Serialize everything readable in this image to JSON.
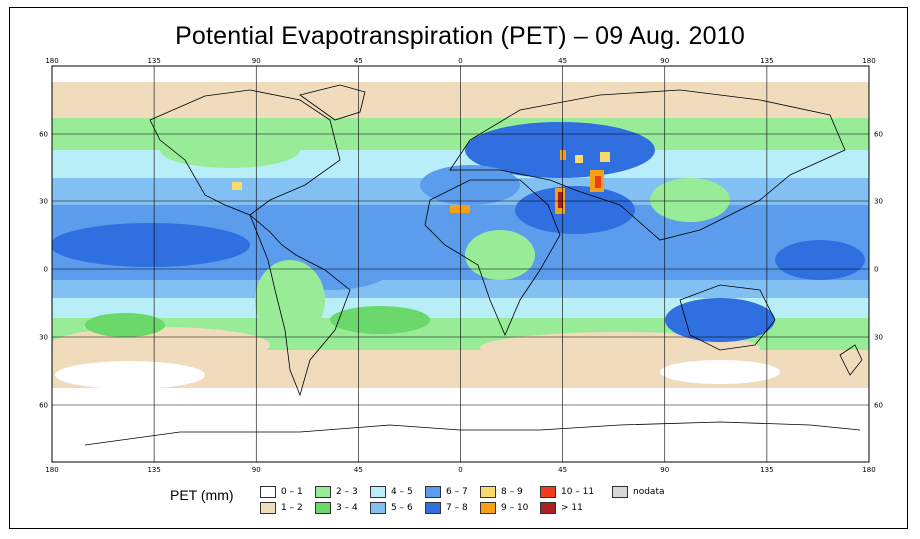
{
  "title": "Potential Evapotranspiration (PET) – 09 Aug. 2010",
  "map": {
    "lon_ticks": [
      "180",
      "135",
      "90",
      "45",
      "0",
      "45",
      "90",
      "135",
      "180"
    ],
    "lat_ticks": [
      "60",
      "30",
      "0",
      "30",
      "60"
    ],
    "colors": {
      "c0_1": "#ffffff",
      "c1_2": "#f0dcbc",
      "c2_3": "#98ec98",
      "c3_4": "#6ad86a",
      "c4_5": "#b8eef8",
      "c5_6": "#82c0f4",
      "c6_7": "#5c9cec",
      "c7_8": "#2f6fe0",
      "c8_9": "#fada6a",
      "c9_10": "#f6a018",
      "c10_11": "#ee3c1c",
      "cgt11": "#a82020",
      "nodata": "#d8d8d8"
    }
  },
  "legend": {
    "title": "PET (mm)",
    "items": [
      {
        "label": "0 – 1",
        "color": "#ffffff"
      },
      {
        "label": "1 – 2",
        "color": "#f0dcbc"
      },
      {
        "label": "2 – 3",
        "color": "#98ec98"
      },
      {
        "label": "3 – 4",
        "color": "#6ad86a"
      },
      {
        "label": "4 – 5",
        "color": "#b8eef8"
      },
      {
        "label": "5 – 6",
        "color": "#82c0f4"
      },
      {
        "label": "6 – 7",
        "color": "#5c9cec"
      },
      {
        "label": "7 – 8",
        "color": "#2f6fe0"
      },
      {
        "label": "8 – 9",
        "color": "#fada6a"
      },
      {
        "label": "9 – 10",
        "color": "#f6a018"
      },
      {
        "label": "10 – 11",
        "color": "#ee3c1c"
      },
      {
        "label": "> 11",
        "color": "#a82020"
      },
      {
        "label": "nodata",
        "color": "#d8d8d8"
      }
    ]
  }
}
